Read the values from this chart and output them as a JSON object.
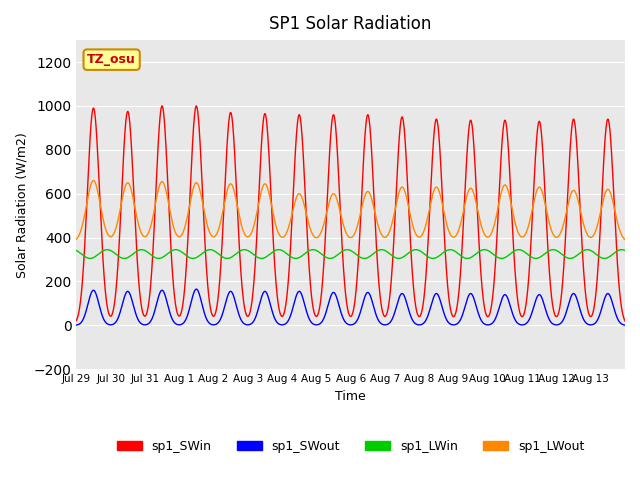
{
  "title": "SP1 Solar Radiation",
  "xlabel": "Time",
  "ylabel": "Solar Radiation (W/m2)",
  "ylim": [
    -200,
    1300
  ],
  "yticks": [
    -200,
    0,
    200,
    400,
    600,
    800,
    1000,
    1200
  ],
  "bg_color": "#e8e8e8",
  "colors": {
    "SWin": "#ff0000",
    "SWout": "#0000ff",
    "LWin": "#00cc00",
    "LWout": "#ff8800"
  },
  "tz_label": "TZ_osu",
  "legend_labels": [
    "sp1_SWin",
    "sp1_SWout",
    "sp1_LWin",
    "sp1_LWout"
  ],
  "x_tick_labels": [
    "Jul 29",
    "Jul 30",
    "Jul 31",
    "Aug 1",
    "Aug 2",
    "Aug 3",
    "Aug 4",
    "Aug 5",
    "Aug 6",
    "Aug 7",
    "Aug 8",
    "Aug 9",
    "Aug 10",
    "Aug 11",
    "Aug 12",
    "Aug 13"
  ],
  "n_days": 16,
  "SWin_peaks": [
    990,
    975,
    1000,
    1000,
    970,
    965,
    960,
    960,
    960,
    950,
    940,
    935,
    935,
    930,
    940,
    940
  ],
  "SWout_peaks": [
    160,
    155,
    160,
    165,
    155,
    155,
    155,
    150,
    150,
    145,
    145,
    145,
    140,
    140,
    145,
    145
  ],
  "LWin_base": 325,
  "LWout_base": 380,
  "LWout_peaks": [
    660,
    650,
    655,
    650,
    645,
    645,
    600,
    600,
    610,
    630,
    630,
    625,
    640,
    630,
    615,
    620
  ]
}
